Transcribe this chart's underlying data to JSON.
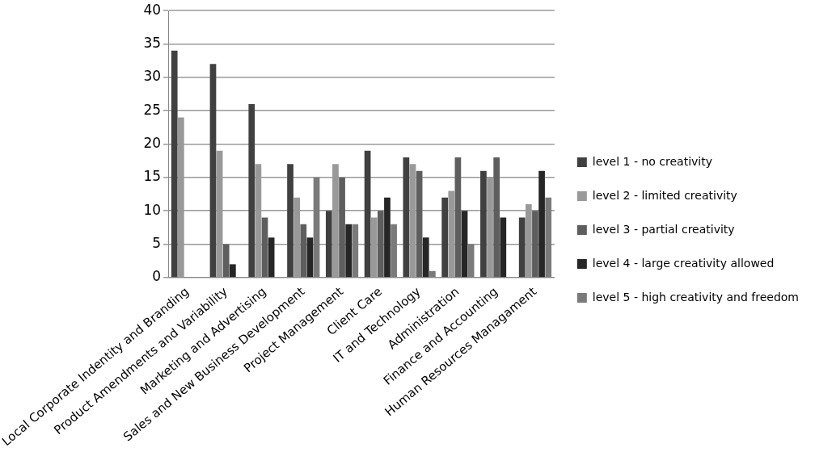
{
  "chart_data": {
    "type": "bar",
    "categories": [
      "Local Corporate Indentity and Branding",
      "Product Amendments and Variability",
      "Marketing and Advertising",
      "Sales and New Business Development",
      "Project Management",
      "Client Care",
      "IT and Technology",
      "Administration",
      "Finance and Accounting",
      "Human Resources Managament"
    ],
    "series": [
      {
        "name": "level 1 - no creativity",
        "color": "#404040",
        "values": [
          34,
          32,
          26,
          17,
          10,
          19,
          18,
          12,
          16,
          9
        ]
      },
      {
        "name": "level 2 - limited creativity",
        "color": "#999999",
        "values": [
          24,
          19,
          17,
          12,
          17,
          9,
          17,
          13,
          15,
          11
        ]
      },
      {
        "name": "level 3 - partial creativity",
        "color": "#5e5e5e",
        "values": [
          0,
          5,
          9,
          8,
          15,
          10,
          16,
          18,
          18,
          10
        ]
      },
      {
        "name": "level 4 - large creativity allowed",
        "color": "#262626",
        "values": [
          0,
          2,
          6,
          6,
          8,
          12,
          6,
          10,
          9,
          16
        ]
      },
      {
        "name": "level 5 - high creativity and freedom",
        "color": "#7a7a7a",
        "values": [
          0,
          0,
          0,
          15,
          8,
          8,
          1,
          5,
          0,
          12
        ]
      }
    ],
    "ylim": [
      0,
      40
    ],
    "yticks": [
      0,
      5,
      10,
      15,
      20,
      25,
      30,
      35,
      40
    ],
    "grid": "y",
    "legend": "right"
  }
}
